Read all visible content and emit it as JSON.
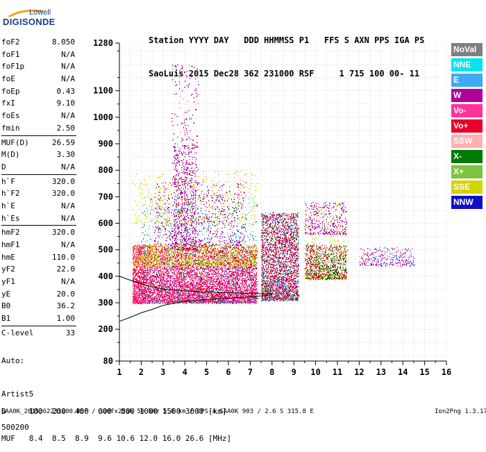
{
  "logo": {
    "top": "Lowell",
    "main": "DIGISONDE"
  },
  "header": {
    "line1": "Station YYYY DAY   DDD HHMMSS P1   FFS S AXN PPS IGA PS",
    "line2": "SaoLuis 2015 Dec28 362 231000 RSF     1 715 100 00- 11"
  },
  "params": [
    {
      "key": "foF2",
      "value": "8.050"
    },
    {
      "key": "foF1",
      "value": "N/A"
    },
    {
      "key": "foF1p",
      "value": "N/A"
    },
    {
      "key": "foE",
      "value": "N/A"
    },
    {
      "key": "foEp",
      "value": "0.43"
    },
    {
      "key": "fxI",
      "value": "9.10"
    },
    {
      "key": "foEs",
      "value": "N/A"
    },
    {
      "key": "fmin",
      "value": "2.50"
    },
    {
      "key": "MUF(D)",
      "value": "26.59",
      "sep": true
    },
    {
      "key": "M(D)",
      "value": "3.30"
    },
    {
      "key": "D",
      "value": "N/A"
    },
    {
      "key": "h`F",
      "value": "320.0",
      "sep": true
    },
    {
      "key": "h`F2",
      "value": "320.0"
    },
    {
      "key": "h`E",
      "value": "N/A"
    },
    {
      "key": "h`Es",
      "value": "N/A"
    },
    {
      "key": "hmF2",
      "value": "320.0",
      "sep": true
    },
    {
      "key": "hmF1",
      "value": "N/A"
    },
    {
      "key": "hmE",
      "value": "110.0"
    },
    {
      "key": "yF2",
      "value": "22.0"
    },
    {
      "key": "yF1",
      "value": "N/A"
    },
    {
      "key": "yE",
      "value": "20.0"
    },
    {
      "key": "B0",
      "value": "36.2"
    },
    {
      "key": "B1",
      "value": "1.00"
    },
    {
      "key": "C-level",
      "value": "33",
      "sep": true
    }
  ],
  "auto": {
    "line1": "Auto:",
    "line2": "Artist5",
    "line3": "500200"
  },
  "legend": [
    {
      "label": "NoVal",
      "color": "#808080"
    },
    {
      "label": "NNE",
      "color": "#00e5ee"
    },
    {
      "label": "E",
      "color": "#3fa9f5"
    },
    {
      "label": "W",
      "color": "#b0009c"
    },
    {
      "label": "Vo-",
      "color": "#ff3399"
    },
    {
      "label": "Vo+",
      "color": "#e8002a"
    },
    {
      "label": "SSW",
      "color": "#ffb0b0"
    },
    {
      "label": "X-",
      "color": "#007a00"
    },
    {
      "label": "X+",
      "color": "#7dc242"
    },
    {
      "label": "SSE",
      "color": "#d4d400"
    },
    {
      "label": "NNW",
      "color": "#1010c8"
    }
  ],
  "chart_data": {
    "type": "scatter",
    "x_ticks": [
      1,
      2,
      3,
      4,
      5,
      6,
      7,
      8,
      9,
      10,
      11,
      12,
      13,
      14,
      15,
      16
    ],
    "y_ticks": [
      80,
      200,
      300,
      400,
      500,
      600,
      700,
      800,
      900,
      1000,
      1100,
      1280
    ],
    "xlim": [
      1,
      16
    ],
    "ylim": [
      80,
      1280
    ],
    "grid": true,
    "trace_lines": [
      {
        "name": "lower",
        "x": [
          1.0,
          1.5,
          2.0,
          2.5,
          3.0,
          3.5,
          4.0,
          5.0,
          6.0,
          7.0,
          7.5,
          8.0
        ],
        "y": [
          230,
          245,
          262,
          275,
          290,
          298,
          305,
          312,
          318,
          322,
          326,
          330
        ]
      },
      {
        "name": "upper",
        "x": [
          1.0,
          1.5,
          2.0,
          2.5,
          3.0,
          4.0,
          5.0,
          6.0,
          7.0,
          8.0
        ],
        "y": [
          400,
          385,
          372,
          360,
          352,
          345,
          340,
          338,
          335,
          334
        ]
      }
    ],
    "clusters": [
      {
        "x": [
          1.6,
          2.2
        ],
        "y": [
          300,
          520
        ],
        "n": 700,
        "color": "#e8002a"
      },
      {
        "x": [
          1.6,
          2.2
        ],
        "y": [
          300,
          520
        ],
        "n": 500,
        "color": "#ff3399"
      },
      {
        "x": [
          2.2,
          7.3
        ],
        "y": [
          305,
          520
        ],
        "n": 3200,
        "color": "#e8002a"
      },
      {
        "x": [
          2.2,
          7.3
        ],
        "y": [
          300,
          500
        ],
        "n": 2600,
        "color": "#ff3399"
      },
      {
        "x": [
          2.0,
          7.3
        ],
        "y": [
          300,
          520
        ],
        "n": 800,
        "color": "#b0009c"
      },
      {
        "x": [
          1.6,
          7.3
        ],
        "y": [
          440,
          520
        ],
        "n": 1300,
        "color": "#d4d400"
      },
      {
        "x": [
          1.6,
          7.3
        ],
        "y": [
          600,
          800
        ],
        "n": 500,
        "color": "#d4d400"
      },
      {
        "x": [
          3.5,
          4.5
        ],
        "y": [
          500,
          900
        ],
        "n": 600,
        "color": "#b0009c"
      },
      {
        "x": [
          2.6,
          6.8
        ],
        "y": [
          520,
          760
        ],
        "n": 700,
        "color": "#b0009c"
      },
      {
        "x": [
          3.4,
          4.6
        ],
        "y": [
          750,
          1200
        ],
        "n": 220,
        "color": "#b0009c"
      },
      {
        "x": [
          2.0,
          7.3
        ],
        "y": [
          300,
          700
        ],
        "n": 400,
        "color": "#3fa9f5"
      },
      {
        "x": [
          2.0,
          7.3
        ],
        "y": [
          300,
          700
        ],
        "n": 300,
        "color": "#007a00"
      },
      {
        "x": [
          2.0,
          7.3
        ],
        "y": [
          300,
          700
        ],
        "n": 250,
        "color": "#00e5ee"
      },
      {
        "x": [
          7.5,
          9.2
        ],
        "y": [
          310,
          640
        ],
        "n": 1500,
        "color": "#e8002a"
      },
      {
        "x": [
          7.5,
          9.2
        ],
        "y": [
          310,
          640
        ],
        "n": 900,
        "color": "#b0009c"
      },
      {
        "x": [
          7.5,
          9.2
        ],
        "y": [
          310,
          640
        ],
        "n": 400,
        "color": "#3fa9f5"
      },
      {
        "x": [
          7.5,
          9.2
        ],
        "y": [
          310,
          640
        ],
        "n": 400,
        "color": "#007a00"
      },
      {
        "x": [
          7.5,
          9.2
        ],
        "y": [
          310,
          640
        ],
        "n": 300,
        "color": "#ffb0b0"
      },
      {
        "x": [
          9.5,
          11.4
        ],
        "y": [
          390,
          520
        ],
        "n": 600,
        "color": "#e8002a"
      },
      {
        "x": [
          9.5,
          11.4
        ],
        "y": [
          390,
          520
        ],
        "n": 400,
        "color": "#007a00"
      },
      {
        "x": [
          9.5,
          11.4
        ],
        "y": [
          560,
          680
        ],
        "n": 350,
        "color": "#b0009c"
      },
      {
        "x": [
          9.5,
          11.4
        ],
        "y": [
          390,
          680
        ],
        "n": 250,
        "color": "#d4d400"
      },
      {
        "x": [
          12.0,
          14.5
        ],
        "y": [
          440,
          510
        ],
        "n": 150,
        "color": "#b0009c"
      },
      {
        "x": [
          12.0,
          14.5
        ],
        "y": [
          440,
          510
        ],
        "n": 120,
        "color": "#3fa9f5"
      },
      {
        "x": [
          12.0,
          14.5
        ],
        "y": [
          440,
          510
        ],
        "n": 80,
        "color": "#ff3399"
      }
    ]
  },
  "footer": {
    "line1": "D     100  200  400  600  800 1000 1500 3000 [km]",
    "line2": "MUF   8.4  8.5  8.9  9.6 10.6 12.0 16.0 26.6 [MHz]",
    "line3": "SAA0K_2015362231000.RSF / 300fx256h 50 kHz 5.0 km / DPS-4 SAA0K 903 / 2.6 S 315.8 E",
    "version": "Ion2Png 1.3.17"
  }
}
